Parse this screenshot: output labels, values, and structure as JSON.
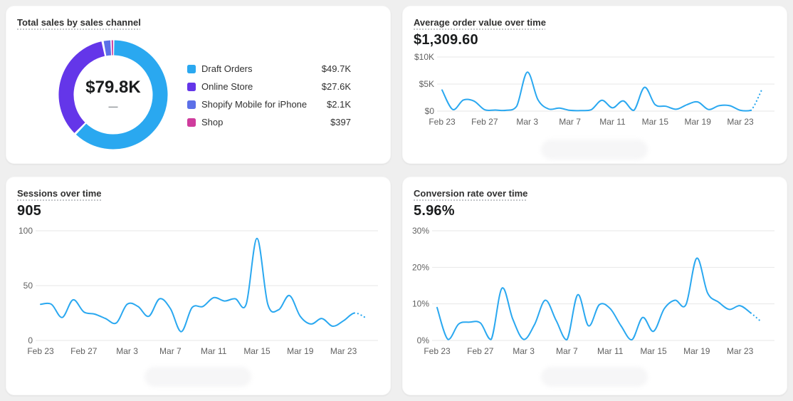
{
  "chart_data": [
    {
      "id": "total-sales-by-channel",
      "type": "pie",
      "title": "Total sales by sales channel",
      "center_value": "$79.8K",
      "center_note": "—",
      "legend_position": "right",
      "slices": [
        {
          "label": "Draft Orders",
          "display_value": "$49.7K",
          "value": 49700,
          "color": "#2aa8f0"
        },
        {
          "label": "Online Store",
          "display_value": "$27.6K",
          "value": 27600,
          "color": "#6436e9"
        },
        {
          "label": "Shopify Mobile for iPhone",
          "display_value": "$2.1K",
          "value": 2100,
          "color": "#5c70e8"
        },
        {
          "label": "Shop",
          "display_value": "$397",
          "value": 397,
          "color": "#cf3c9d"
        }
      ]
    },
    {
      "id": "average-order-value-over-time",
      "type": "line",
      "title": "Average order value over time",
      "headline_value": "$1,309.60",
      "line_color": "#2aa8f0",
      "grid": true,
      "ymax": 10000,
      "y_ticks": [
        {
          "value": 0,
          "label": "$0"
        },
        {
          "value": 5000,
          "label": "$5K"
        },
        {
          "value": 10000,
          "label": "$10K"
        }
      ],
      "x": [
        "Feb 23",
        "Feb 24",
        "Feb 25",
        "Feb 26",
        "Feb 27",
        "Feb 28",
        "Mar 1",
        "Mar 2",
        "Mar 3",
        "Mar 4",
        "Mar 5",
        "Mar 6",
        "Mar 7",
        "Mar 8",
        "Mar 9",
        "Mar 10",
        "Mar 11",
        "Mar 12",
        "Mar 13",
        "Mar 14",
        "Mar 15",
        "Mar 16",
        "Mar 17",
        "Mar 18",
        "Mar 19",
        "Mar 20",
        "Mar 21",
        "Mar 22",
        "Mar 23",
        "Mar 24",
        "Mar 25"
      ],
      "x_ticks": [
        {
          "index": 0,
          "label": "Feb 23"
        },
        {
          "index": 4,
          "label": "Feb 27"
        },
        {
          "index": 8,
          "label": "Mar 3"
        },
        {
          "index": 12,
          "label": "Mar 7"
        },
        {
          "index": 16,
          "label": "Mar 11"
        },
        {
          "index": 20,
          "label": "Mar 15"
        },
        {
          "index": 24,
          "label": "Mar 19"
        },
        {
          "index": 28,
          "label": "Mar 23"
        }
      ],
      "values": [
        3900,
        300,
        2050,
        1850,
        250,
        200,
        150,
        900,
        7200,
        2100,
        400,
        550,
        150,
        100,
        250,
        2000,
        600,
        1900,
        150,
        4400,
        1200,
        900,
        350,
        1200,
        1700,
        300,
        1000,
        1000,
        150,
        150,
        3900
      ],
      "projected_last_intervals": 1
    },
    {
      "id": "sessions-over-time",
      "type": "line",
      "title": "Sessions over time",
      "headline_value": "905",
      "line_color": "#2aa8f0",
      "grid": true,
      "ymax": 100,
      "y_ticks": [
        {
          "value": 0,
          "label": "0"
        },
        {
          "value": 50,
          "label": "50"
        },
        {
          "value": 100,
          "label": "100"
        }
      ],
      "x": [
        "Feb 23",
        "Feb 24",
        "Feb 25",
        "Feb 26",
        "Feb 27",
        "Feb 28",
        "Mar 1",
        "Mar 2",
        "Mar 3",
        "Mar 4",
        "Mar 5",
        "Mar 6",
        "Mar 7",
        "Mar 8",
        "Mar 9",
        "Mar 10",
        "Mar 11",
        "Mar 12",
        "Mar 13",
        "Mar 14",
        "Mar 15",
        "Mar 16",
        "Mar 17",
        "Mar 18",
        "Mar 19",
        "Mar 20",
        "Mar 21",
        "Mar 22",
        "Mar 23",
        "Mar 24",
        "Mar 25"
      ],
      "x_ticks": [
        {
          "index": 0,
          "label": "Feb 23"
        },
        {
          "index": 4,
          "label": "Feb 27"
        },
        {
          "index": 8,
          "label": "Mar 3"
        },
        {
          "index": 12,
          "label": "Mar 7"
        },
        {
          "index": 16,
          "label": "Mar 11"
        },
        {
          "index": 20,
          "label": "Mar 15"
        },
        {
          "index": 24,
          "label": "Mar 19"
        },
        {
          "index": 28,
          "label": "Mar 23"
        }
      ],
      "values": [
        33,
        33,
        21,
        37,
        26,
        24,
        20,
        16,
        33,
        31,
        22,
        38,
        29,
        8,
        30,
        31,
        39,
        36,
        38,
        33,
        93,
        33,
        28,
        41,
        22,
        15,
        20,
        13,
        18,
        25,
        21
      ],
      "projected_last_intervals": 1
    },
    {
      "id": "conversion-rate-over-time",
      "type": "line",
      "title": "Conversion rate over time",
      "headline_value": "5.96%",
      "line_color": "#2aa8f0",
      "grid": true,
      "ymax": 30,
      "y_ticks": [
        {
          "value": 0,
          "label": "0%"
        },
        {
          "value": 10,
          "label": "10%"
        },
        {
          "value": 20,
          "label": "20%"
        },
        {
          "value": 30,
          "label": "30%"
        }
      ],
      "x": [
        "Feb 23",
        "Feb 24",
        "Feb 25",
        "Feb 26",
        "Feb 27",
        "Feb 28",
        "Mar 1",
        "Mar 2",
        "Mar 3",
        "Mar 4",
        "Mar 5",
        "Mar 6",
        "Mar 7",
        "Mar 8",
        "Mar 9",
        "Mar 10",
        "Mar 11",
        "Mar 12",
        "Mar 13",
        "Mar 14",
        "Mar 15",
        "Mar 16",
        "Mar 17",
        "Mar 18",
        "Mar 19",
        "Mar 20",
        "Mar 21",
        "Mar 22",
        "Mar 23",
        "Mar 24",
        "Mar 25"
      ],
      "x_ticks": [
        {
          "index": 0,
          "label": "Feb 23"
        },
        {
          "index": 4,
          "label": "Feb 27"
        },
        {
          "index": 8,
          "label": "Mar 3"
        },
        {
          "index": 12,
          "label": "Mar 7"
        },
        {
          "index": 16,
          "label": "Mar 11"
        },
        {
          "index": 20,
          "label": "Mar 15"
        },
        {
          "index": 24,
          "label": "Mar 19"
        },
        {
          "index": 28,
          "label": "Mar 23"
        }
      ],
      "values": [
        9,
        0.3,
        4.5,
        5,
        4.8,
        0.3,
        14.3,
        5.8,
        0.3,
        4.3,
        11,
        5.5,
        0.2,
        12.5,
        4,
        9.8,
        8.7,
        4,
        0.2,
        6.3,
        2.5,
        8.7,
        11,
        9.8,
        22.5,
        13,
        10.5,
        8.5,
        9.5,
        7.5,
        5
      ],
      "projected_last_intervals": 1
    }
  ]
}
